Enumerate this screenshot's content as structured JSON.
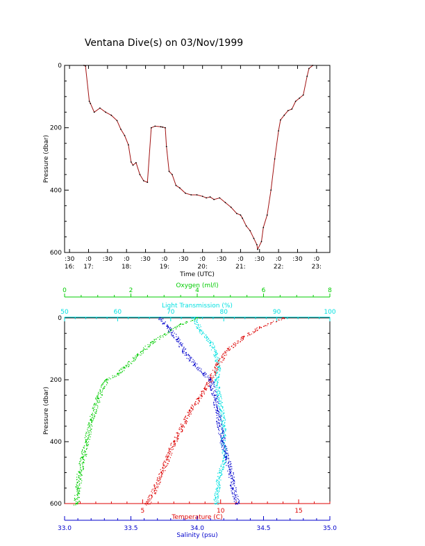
{
  "title": "Ventana Dive(s) on 03/Nov/1999",
  "colors": {
    "axes": "#000000",
    "depth_trace": "#a01010",
    "oxygen": "#00cc00",
    "transmission": "#00e0e0",
    "temperature": "#dd0000",
    "salinity": "#0000cc"
  },
  "chart_data": [
    {
      "type": "line",
      "xlabel": "Time (UTC)",
      "ylabel": "Pressure (dbar)",
      "x_ticks": [
        {
          "t": 16.5,
          "top": ":30",
          "bottom": "16:"
        },
        {
          "t": 17.0,
          "top": ":0",
          "bottom": "17:"
        },
        {
          "t": 17.5,
          "top": ":30",
          "bottom": ""
        },
        {
          "t": 18.0,
          "top": ":0",
          "bottom": "18:"
        },
        {
          "t": 18.5,
          "top": ":30",
          "bottom": ""
        },
        {
          "t": 19.0,
          "top": ":0",
          "bottom": "19:"
        },
        {
          "t": 19.5,
          "top": ":30",
          "bottom": ""
        },
        {
          "t": 20.0,
          "top": ":0",
          "bottom": "20:"
        },
        {
          "t": 20.5,
          "top": ":30",
          "bottom": ""
        },
        {
          "t": 21.0,
          "top": ":0",
          "bottom": "21:"
        },
        {
          "t": 21.5,
          "top": ":30",
          "bottom": ""
        },
        {
          "t": 22.0,
          "top": ":0",
          "bottom": "22:"
        },
        {
          "t": 22.5,
          "top": ":30",
          "bottom": ""
        },
        {
          "t": 23.0,
          "top": ":0",
          "bottom": "23:"
        }
      ],
      "xlim": [
        16.37,
        23.35
      ],
      "ylim": [
        600,
        0
      ],
      "y_ticks": [
        "0",
        "200",
        "400",
        "600"
      ],
      "series": [
        {
          "x": [
            16.88,
            16.92,
            17.02,
            17.05,
            17.15,
            17.3,
            17.45,
            17.6,
            17.75,
            17.85,
            17.95,
            18.05,
            18.12,
            18.17,
            18.25,
            18.35,
            18.45,
            18.55,
            18.65,
            18.75,
            18.9,
            18.95,
            19.02,
            19.05,
            19.12,
            19.2,
            19.3,
            19.4,
            19.55,
            19.7,
            19.85,
            20.0,
            20.1,
            20.2,
            20.3,
            20.45,
            20.6,
            20.75,
            20.9,
            21.0,
            21.05,
            21.15,
            21.25,
            21.35,
            21.43,
            21.45,
            21.55,
            21.6,
            21.7,
            21.8,
            21.9,
            22.0,
            22.05,
            22.15,
            22.25,
            22.35,
            22.45,
            22.55,
            22.65,
            22.75,
            22.8,
            22.9
          ],
          "y": [
            0,
            2,
            115,
            122,
            150,
            137,
            150,
            160,
            177,
            205,
            225,
            255,
            310,
            320,
            312,
            350,
            370,
            375,
            200,
            195,
            197,
            198,
            200,
            260,
            340,
            350,
            385,
            393,
            410,
            415,
            415,
            420,
            425,
            422,
            430,
            425,
            440,
            455,
            475,
            480,
            490,
            515,
            530,
            555,
            575,
            590,
            565,
            520,
            480,
            400,
            300,
            210,
            175,
            160,
            145,
            140,
            115,
            105,
            95,
            35,
            10,
            0
          ]
        }
      ]
    },
    {
      "type": "scatter",
      "ylabel": "Pressure (dbar)",
      "ylim": [
        600,
        0
      ],
      "y_ticks": [
        "0",
        "200",
        "400",
        "600"
      ],
      "axes": {
        "oxygen": {
          "label": "Oxygen (ml/l)",
          "range": [
            0,
            8
          ],
          "ticks": [
            "0",
            "2",
            "4",
            "6",
            "8"
          ]
        },
        "transmission": {
          "label": "Light Transmission (%)",
          "range": [
            50,
            100
          ],
          "ticks": [
            "50",
            "60",
            "70",
            "80",
            "90",
            "100"
          ]
        },
        "temperature": {
          "label": "Temperature (C)",
          "range": [
            0,
            17
          ],
          "ticks": [
            "5",
            "10",
            "15"
          ]
        },
        "salinity": {
          "label": "Salinity (psu)",
          "range": [
            33.0,
            35.0
          ],
          "ticks": [
            "33.0",
            "33.5",
            "34.0",
            "34.5",
            "35.0"
          ]
        }
      },
      "series": [
        {
          "name": "Oxygen (ml/l)",
          "x": [
            4.0,
            3.5,
            3.2,
            2.6,
            2.2,
            1.8,
            1.6,
            1.25,
            1.0,
            0.8,
            0.65,
            0.55,
            0.45,
            0.4,
            0.35
          ],
          "y": [
            0,
            20,
            40,
            80,
            120,
            160,
            180,
            200,
            260,
            330,
            400,
            450,
            500,
            550,
            600
          ]
        },
        {
          "name": "Light Transmission (%)",
          "x": [
            74.5,
            75.5,
            77.5,
            78.5,
            79.0,
            78.5,
            79.0,
            79.5,
            80.0,
            79.8,
            80.2,
            79.2,
            78.8,
            78.5,
            78.6
          ],
          "y": [
            0,
            40,
            80,
            120,
            160,
            200,
            250,
            300,
            350,
            400,
            450,
            500,
            550,
            580,
            600
          ]
        },
        {
          "name": "Temperature (C)",
          "x": [
            14.0,
            12.5,
            11.5,
            10.5,
            9.8,
            9.3,
            9.0,
            8.6,
            8.0,
            7.5,
            7.0,
            6.6,
            6.2,
            5.8,
            5.3
          ],
          "y": [
            0,
            30,
            60,
            100,
            150,
            200,
            230,
            260,
            300,
            350,
            400,
            450,
            500,
            550,
            600
          ]
        },
        {
          "name": "Salinity (psu)",
          "x": [
            33.72,
            33.78,
            33.85,
            33.92,
            33.98,
            34.05,
            34.1,
            34.13,
            34.15,
            34.17,
            34.19,
            34.22,
            34.25,
            34.27,
            34.3
          ],
          "y": [
            0,
            30,
            70,
            120,
            150,
            180,
            200,
            250,
            300,
            350,
            400,
            450,
            500,
            550,
            600
          ]
        }
      ]
    }
  ]
}
